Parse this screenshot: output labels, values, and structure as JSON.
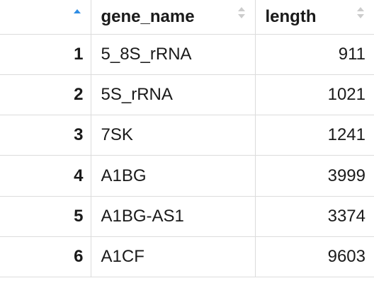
{
  "table": {
    "columns": {
      "index": "",
      "gene_name": "gene_name",
      "length": "length"
    },
    "rows": [
      {
        "index": "1",
        "gene_name": "5_8S_rRNA",
        "length": "911"
      },
      {
        "index": "2",
        "gene_name": "5S_rRNA",
        "length": "1021"
      },
      {
        "index": "3",
        "gene_name": "7SK",
        "length": "1241"
      },
      {
        "index": "4",
        "gene_name": "A1BG",
        "length": "3999"
      },
      {
        "index": "5",
        "gene_name": "A1BG-AS1",
        "length": "3374"
      },
      {
        "index": "6",
        "gene_name": "A1CF",
        "length": "9603"
      }
    ],
    "sort": {
      "index": "ascending",
      "gene_name": "none",
      "length": "none"
    },
    "colors": {
      "sort_active": "#2f8de4",
      "sort_inactive": "#cccccc",
      "grid": "#dcdcdc",
      "text": "#1a1a1a"
    }
  }
}
